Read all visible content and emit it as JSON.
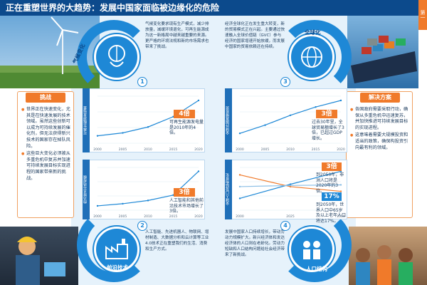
{
  "header": {
    "title": "正在重塑世界的大趋势：发展中国家面临被边缘化的危险",
    "corner_tab": "第一"
  },
  "challenge": {
    "title": "挑战",
    "bullets": [
      "世界正在快速变化，尤其是在快速发展的技术领域。虽然这些创新可以成为可持续发展的催化剂，但无法获得新兴技术的国家存在掉队风险。",
      "这些巨大变化必须被从多重危机中复苏并加速可持续发展目标实现进程的国家带来新的挑战。"
    ]
  },
  "solution": {
    "title": "解决方案",
    "bullets": [
      "各国政府需要采取行动，确保从多重危机中迅速复苏，并加快推进可持续发展目标的实现进程。",
      "这意味着需要大规模投资和适当的政策，确保构投资引向最有利的领域。"
    ]
  },
  "topics": [
    {
      "id": "1",
      "label": "气候变化",
      "text": "气候变化要求现有生产模式，减少排放量，减缓环境退化，可再生能源成为这一新格局中越来越重要的来源。更严格的环境法规和新的市场需求也带来了挑战。",
      "chart_vlabel": "可再生能源发电量",
      "badge": "4倍",
      "callout": "可再生能源发电量是2010年的4倍。"
    },
    {
      "id": "2",
      "label": "前沿技术",
      "text": "人工智能、先进机器人、物联网、增材制造、大数据分析和云计算等工业4.0技术正在重塑我们的生活、消费和生产方式。",
      "chart_vlabel": "前沿技术市场规模",
      "badge": "3倍",
      "callout": "人工智能和其他前沿技术市场增长了3倍。"
    },
    {
      "id": "3",
      "label": "全球化",
      "text": "经济全球化正在发生重大转变，新的贸易模式正在兴起。主要通过快速融入全球价值链（GVC）参与经济的国家增速开始放缓，而发展中国家的贸易依赖还在持续。",
      "chart_vlabel": "全球外国直接投资",
      "badge": "3倍",
      "callout": "过去30年里，全球贸易额增长了3倍，已超过GDP增长。"
    },
    {
      "id": "4",
      "label": "人口结构",
      "text": "发展中国家人口持续增长，带动劳动力规模扩大。新兴经济体和发达经济体的人口则在老龄化。劳动力短缺和人口结构问题给社会经济带来了新挑战。",
      "chart_vlabel": "全球人口及结构变化",
      "badge_a": "3倍",
      "callout_a": "到2050年，非洲人口将是2020年的3倍。",
      "badge_b": "17%",
      "callout_b": "到2050年，世界人口中65岁及以上老年人口将达17%。"
    }
  ],
  "chart_data": [
    {
      "type": "line",
      "x": [
        "2000",
        "2005",
        "2010",
        "2015",
        "2020"
      ],
      "series": [
        {
          "values": [
            50,
            70,
            110,
            180,
            290
          ]
        }
      ]
    },
    {
      "type": "line",
      "x": [
        "2000",
        "2005",
        "2010",
        "2015",
        "2020"
      ],
      "series": [
        {
          "values": [
            20,
            30,
            45,
            70,
            180
          ]
        }
      ]
    },
    {
      "type": "line",
      "x": [
        "2000",
        "2005",
        "2010",
        "2015",
        "2020"
      ],
      "series": [
        {
          "values": [
            60,
            110,
            170,
            220,
            260
          ]
        }
      ]
    },
    {
      "type": "line",
      "x": [
        "2000",
        "2025",
        "2050"
      ],
      "series": [
        {
          "values": [
            100,
            220,
            330
          ]
        },
        {
          "values": [
            300,
            200,
            160
          ]
        },
        {
          "values": [
            200,
            210,
            215
          ]
        }
      ]
    }
  ],
  "colors": {
    "navy": "#0c4a8c",
    "blue": "#1e88d6",
    "orange": "#f07a2a",
    "light": "#e6f2fb"
  }
}
